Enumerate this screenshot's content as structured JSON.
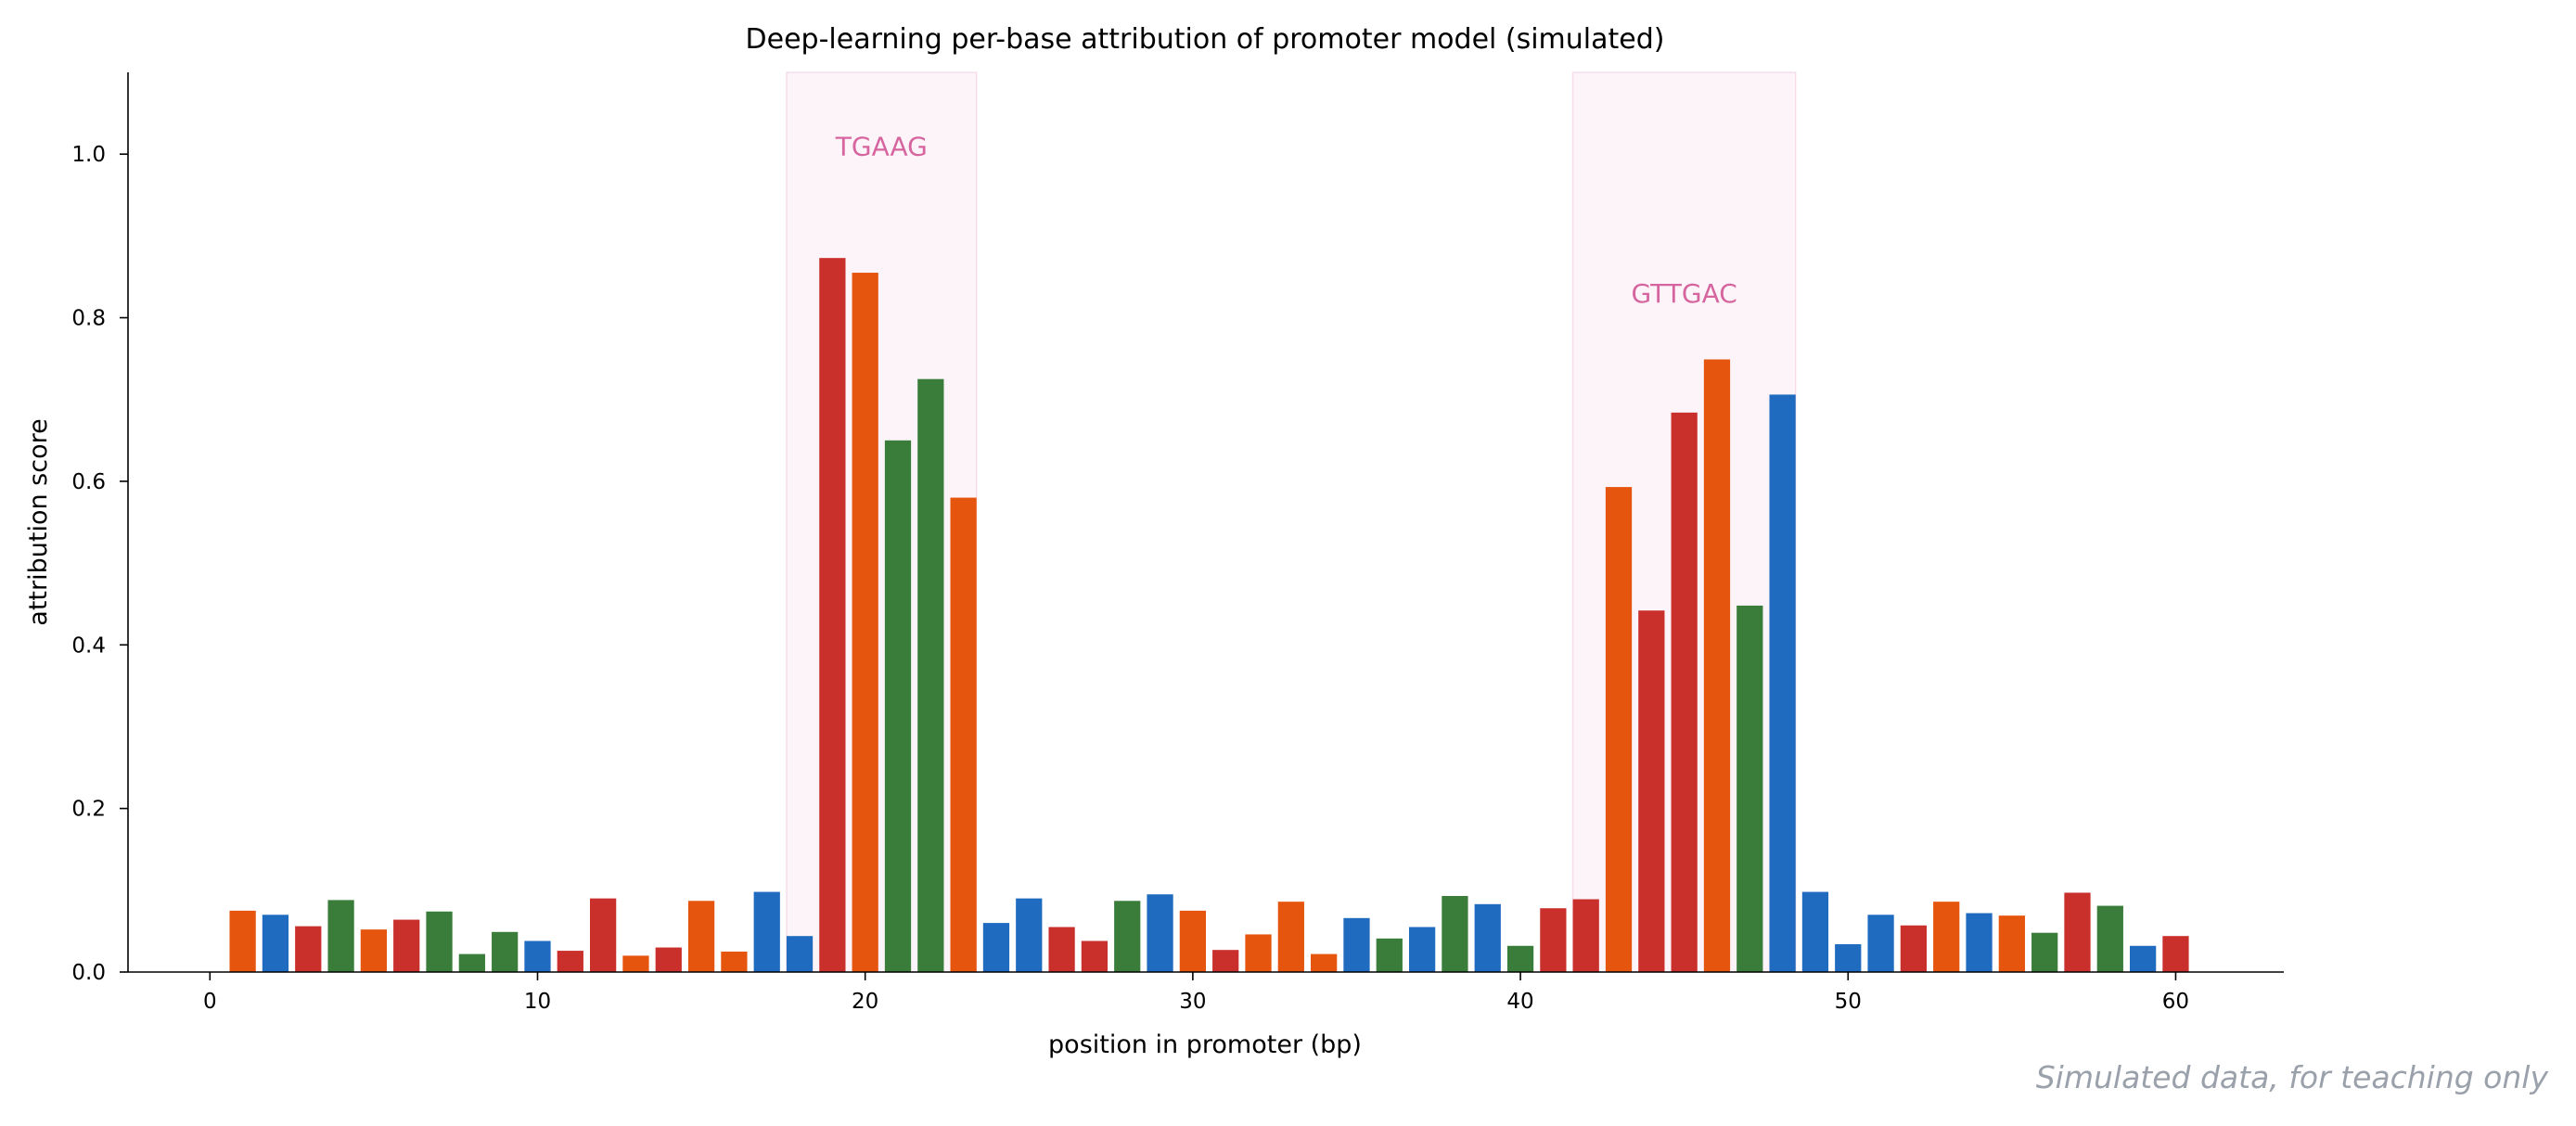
{
  "chart_data": {
    "type": "bar",
    "title": "Deep-learning per-base attribution of promoter model (simulated)",
    "xlabel": "position in promoter (bp)",
    "ylabel": "attribution score",
    "xlim": [
      -2.5,
      63.3
    ],
    "ylim": [
      0,
      1.1
    ],
    "xticks": [
      "0",
      "10",
      "20",
      "30",
      "40",
      "50",
      "60"
    ],
    "yticks": [
      "0.0",
      "0.2",
      "0.4",
      "0.6",
      "0.8",
      "1.0"
    ],
    "grid": false,
    "base_colors": {
      "A": "#e6550d",
      "C": "#1f6bbf",
      "G": "#3a7d3a",
      "T": "#c9302c"
    },
    "motifs": [
      {
        "label": "TGAAG",
        "start": 17.6,
        "end": 23.4,
        "color": "#d6649e",
        "label_y": 1.01
      },
      {
        "label": "GTTGAC",
        "start": 41.6,
        "end": 48.4,
        "color": "#d6649e",
        "label_y": 0.83
      }
    ],
    "bars": [
      {
        "x": 1,
        "base": "A",
        "value": 0.075
      },
      {
        "x": 2,
        "base": "C",
        "value": 0.07
      },
      {
        "x": 3,
        "base": "T",
        "value": 0.056
      },
      {
        "x": 4,
        "base": "G",
        "value": 0.088
      },
      {
        "x": 5,
        "base": "A",
        "value": 0.052
      },
      {
        "x": 6,
        "base": "T",
        "value": 0.064
      },
      {
        "x": 7,
        "base": "G",
        "value": 0.074
      },
      {
        "x": 8,
        "base": "G",
        "value": 0.022
      },
      {
        "x": 9,
        "base": "G",
        "value": 0.049
      },
      {
        "x": 10,
        "base": "C",
        "value": 0.038
      },
      {
        "x": 11,
        "base": "T",
        "value": 0.026
      },
      {
        "x": 12,
        "base": "T",
        "value": 0.09
      },
      {
        "x": 13,
        "base": "A",
        "value": 0.02
      },
      {
        "x": 14,
        "base": "T",
        "value": 0.03
      },
      {
        "x": 15,
        "base": "A",
        "value": 0.087
      },
      {
        "x": 16,
        "base": "A",
        "value": 0.025
      },
      {
        "x": 17,
        "base": "C",
        "value": 0.098
      },
      {
        "x": 18,
        "base": "C",
        "value": 0.044
      },
      {
        "x": 19,
        "base": "T",
        "value": 0.873
      },
      {
        "x": 20,
        "base": "A",
        "value": 0.855
      },
      {
        "x": 21,
        "base": "G",
        "value": 0.65
      },
      {
        "x": 22,
        "base": "G",
        "value": 0.725
      },
      {
        "x": 23,
        "base": "A",
        "value": 0.58
      },
      {
        "x": 24,
        "base": "C",
        "value": 0.06
      },
      {
        "x": 25,
        "base": "C",
        "value": 0.09
      },
      {
        "x": 26,
        "base": "T",
        "value": 0.055
      },
      {
        "x": 27,
        "base": "T",
        "value": 0.038
      },
      {
        "x": 28,
        "base": "G",
        "value": 0.087
      },
      {
        "x": 29,
        "base": "C",
        "value": 0.095
      },
      {
        "x": 30,
        "base": "A",
        "value": 0.075
      },
      {
        "x": 31,
        "base": "T",
        "value": 0.027
      },
      {
        "x": 32,
        "base": "A",
        "value": 0.046
      },
      {
        "x": 33,
        "base": "A",
        "value": 0.086
      },
      {
        "x": 34,
        "base": "A",
        "value": 0.022
      },
      {
        "x": 35,
        "base": "C",
        "value": 0.066
      },
      {
        "x": 36,
        "base": "G",
        "value": 0.041
      },
      {
        "x": 37,
        "base": "C",
        "value": 0.055
      },
      {
        "x": 38,
        "base": "G",
        "value": 0.093
      },
      {
        "x": 39,
        "base": "C",
        "value": 0.083
      },
      {
        "x": 40,
        "base": "G",
        "value": 0.032
      },
      {
        "x": 41,
        "base": "T",
        "value": 0.078
      },
      {
        "x": 42,
        "base": "T",
        "value": 0.089
      },
      {
        "x": 43,
        "base": "A",
        "value": 0.593
      },
      {
        "x": 44,
        "base": "T",
        "value": 0.442
      },
      {
        "x": 45,
        "base": "T",
        "value": 0.684
      },
      {
        "x": 46,
        "base": "A",
        "value": 0.749
      },
      {
        "x": 47,
        "base": "G",
        "value": 0.448
      },
      {
        "x": 48,
        "base": "C",
        "value": 0.706
      },
      {
        "x": 49,
        "base": "C",
        "value": 0.098
      },
      {
        "x": 50,
        "base": "C",
        "value": 0.034
      },
      {
        "x": 51,
        "base": "C",
        "value": 0.07
      },
      {
        "x": 52,
        "base": "T",
        "value": 0.057
      },
      {
        "x": 53,
        "base": "A",
        "value": 0.086
      },
      {
        "x": 54,
        "base": "C",
        "value": 0.072
      },
      {
        "x": 55,
        "base": "A",
        "value": 0.069
      },
      {
        "x": 56,
        "base": "G",
        "value": 0.048
      },
      {
        "x": 57,
        "base": "T",
        "value": 0.097
      },
      {
        "x": 58,
        "base": "G",
        "value": 0.081
      },
      {
        "x": 59,
        "base": "C",
        "value": 0.032
      },
      {
        "x": 60,
        "base": "T",
        "value": 0.044
      }
    ]
  },
  "footer": {
    "note": "Simulated data, for teaching only"
  }
}
